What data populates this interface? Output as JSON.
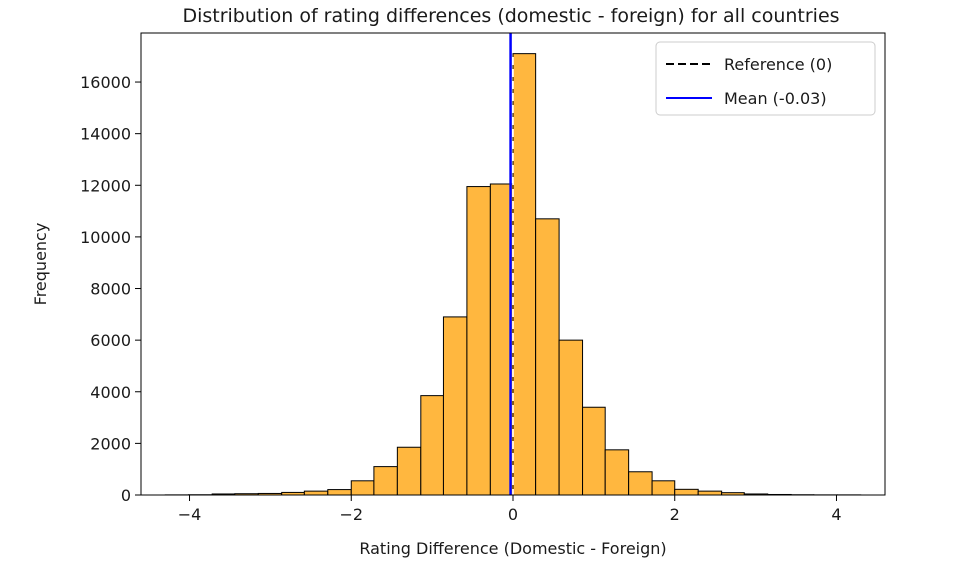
{
  "chart_data": {
    "type": "bar",
    "title": "Distribution of rating differences (domestic - foreign) for all countries",
    "xlabel": "Rating Difference (Domestic - Foreign)",
    "ylabel": "Frequency",
    "xlim": [
      -4.6,
      4.6
    ],
    "ylim": [
      0,
      17900
    ],
    "xticks": [
      -4,
      -2,
      0,
      2,
      4
    ],
    "xtick_labels": [
      "−4",
      "−2",
      "0",
      "2",
      "4"
    ],
    "yticks": [
      0,
      2000,
      4000,
      6000,
      8000,
      10000,
      12000,
      14000,
      16000
    ],
    "ytick_labels": [
      "0",
      "2000",
      "4000",
      "6000",
      "8000",
      "10000",
      "12000",
      "14000",
      "16000"
    ],
    "grid": false,
    "legend_position": "top-right",
    "bar_fill": "#FFB73F",
    "bar_edge": "#000000",
    "bin_edges": [
      -4.3,
      -4.01,
      -3.72,
      -3.44,
      -3.15,
      -2.86,
      -2.58,
      -2.29,
      -2.0,
      -1.72,
      -1.43,
      -1.14,
      -0.86,
      -0.57,
      -0.28,
      0.0,
      0.28,
      0.57,
      0.86,
      1.14,
      1.43,
      1.72,
      2.0,
      2.29,
      2.58,
      2.86,
      3.15,
      3.44,
      3.72,
      4.01,
      4.3
    ],
    "values": [
      5,
      10,
      40,
      50,
      60,
      100,
      150,
      210,
      550,
      1100,
      1850,
      3850,
      6900,
      11950,
      12050,
      17100,
      10700,
      6000,
      3400,
      1750,
      900,
      550,
      220,
      150,
      90,
      40,
      20,
      10,
      5,
      5
    ],
    "reference_lines": [
      {
        "name": "Reference (0)",
        "x": 0,
        "color": "#000000",
        "dash": true
      },
      {
        "name": "Mean (-0.03)",
        "x": -0.03,
        "color": "#0000FF",
        "dash": false
      }
    ],
    "legend": [
      {
        "label": "Reference (0)",
        "color": "#000000",
        "style": "dashed"
      },
      {
        "label": "Mean (-0.03)",
        "color": "#0000FF",
        "style": "solid"
      }
    ]
  }
}
